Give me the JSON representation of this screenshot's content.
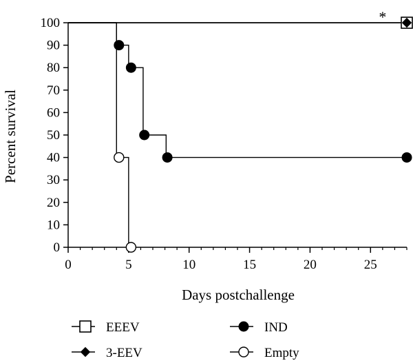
{
  "chart_data": {
    "type": "line",
    "step": true,
    "xlabel": "Days postchallenge",
    "ylabel": "Percent survival",
    "xlim": [
      0,
      28
    ],
    "ylim": [
      0,
      100
    ],
    "xticks": [
      0,
      5,
      10,
      15,
      20,
      25
    ],
    "yticks": [
      0,
      10,
      20,
      30,
      40,
      50,
      60,
      70,
      80,
      90,
      100
    ],
    "grid": false,
    "legend_position": "bottom",
    "annotations": [
      {
        "text": "*",
        "x": 26,
        "y": 100
      }
    ],
    "series": [
      {
        "name": "EEEV",
        "marker": "open-square",
        "x": [
          0,
          28
        ],
        "y": [
          100,
          100
        ],
        "marker_x": [
          28
        ],
        "marker_y": [
          100
        ]
      },
      {
        "name": "3-EEV",
        "marker": "filled-diamond",
        "x": [
          0,
          28
        ],
        "y": [
          100,
          100
        ],
        "marker_x": [
          28
        ],
        "marker_y": [
          100
        ]
      },
      {
        "name": "IND",
        "marker": "filled-circle",
        "x": [
          0,
          4,
          4,
          5,
          5,
          6.2,
          6.2,
          8.1,
          8.1,
          28
        ],
        "y": [
          100,
          100,
          90,
          90,
          80,
          80,
          50,
          50,
          40,
          40
        ],
        "marker_x": [
          4.2,
          5.2,
          6.3,
          8.2,
          28
        ],
        "marker_y": [
          90,
          80,
          50,
          40,
          40
        ]
      },
      {
        "name": "Empty",
        "marker": "open-circle",
        "x": [
          0,
          4,
          4,
          5,
          5
        ],
        "y": [
          100,
          100,
          40,
          40,
          0
        ],
        "marker_x": [
          4.2,
          5.2
        ],
        "marker_y": [
          40,
          0
        ]
      }
    ]
  }
}
